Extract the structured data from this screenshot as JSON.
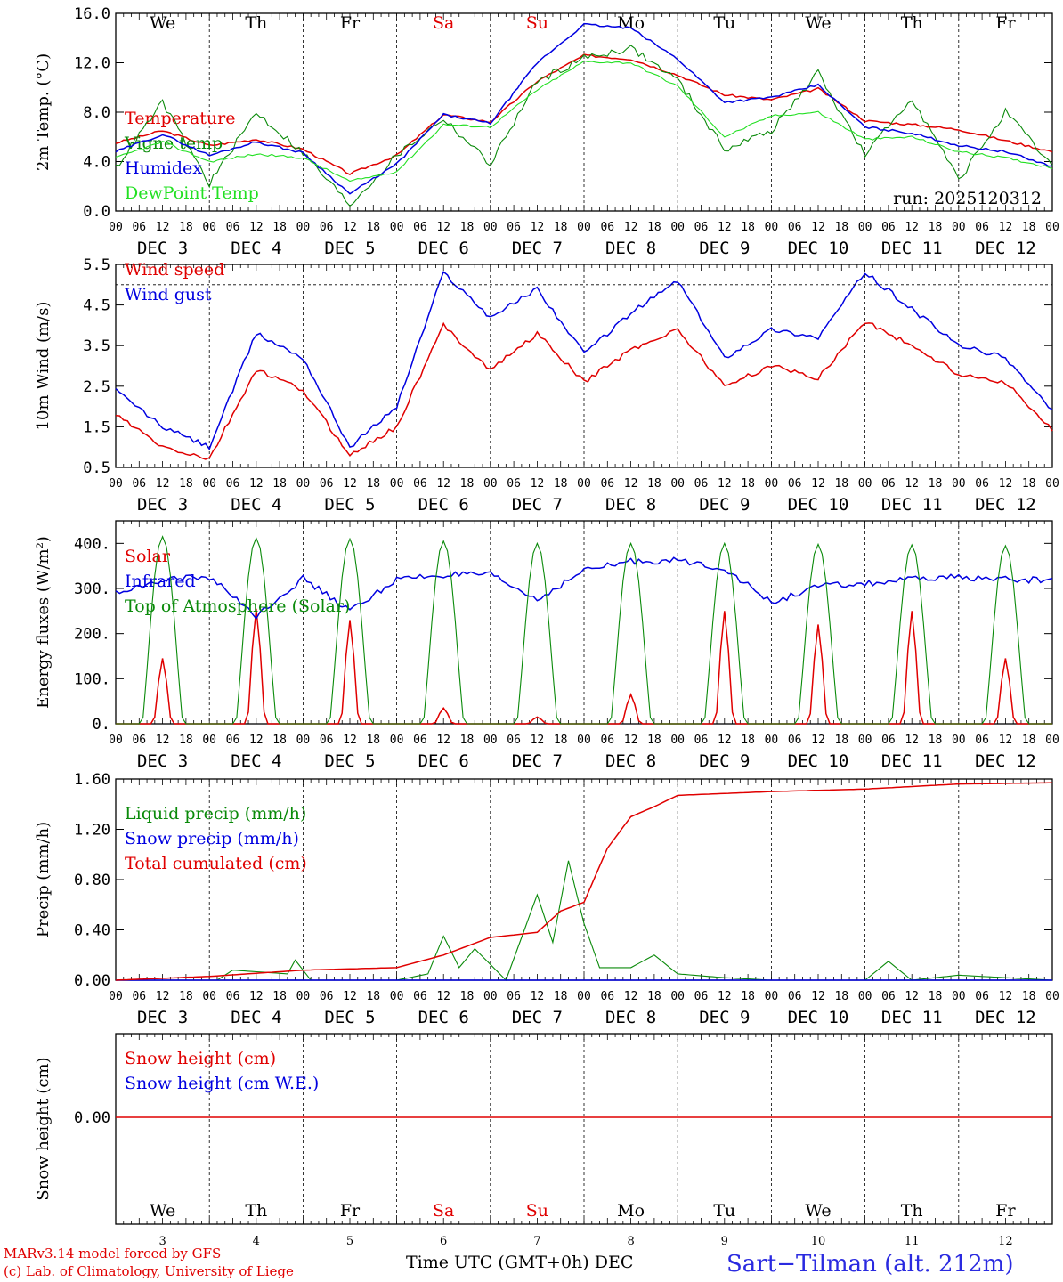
{
  "days": [
    "We",
    "Th",
    "Fr",
    "Sa",
    "Su",
    "Mo",
    "Tu",
    "We",
    "Th",
    "Fr"
  ],
  "weekend_days": [
    "Sa",
    "Su"
  ],
  "dates": [
    "DEC  3",
    "DEC  4",
    "DEC  5",
    "DEC  6",
    "DEC  7",
    "DEC  8",
    "DEC  9",
    "DEC 10",
    "DEC 11",
    "DEC 12"
  ],
  "bottom_date_numbers": [
    "3",
    "4",
    "5",
    "6",
    "7",
    "8",
    "9",
    "10",
    "11",
    "12"
  ],
  "hour_ticks": [
    "00",
    "06",
    "12",
    "18"
  ],
  "run_label": "run: 2025120312",
  "footer": {
    "model": "MARv3.14 model forced by GFS",
    "copyright": "(c) Lab. of Climatology, University of Liege",
    "time_axis": "Time UTC (GMT+0h) DEC",
    "station": "Sart−Tilman (alt. 212m)"
  },
  "colors": {
    "red": "#e00000",
    "green": "#0a8a0a",
    "blue": "#0000e0",
    "lightgreen": "#22e022"
  },
  "chart_data": [
    {
      "type": "line",
      "ylabel": "2m Temp. (°C)",
      "yticks": [
        "0.0",
        "4.0",
        "8.0",
        "12.0",
        "16.0"
      ],
      "ylim": [
        0,
        16
      ],
      "x_hours": [
        0,
        12,
        24,
        36,
        48,
        60,
        72,
        84,
        96,
        108,
        120,
        132,
        144,
        156,
        168,
        180,
        192,
        204,
        216,
        228,
        240
      ],
      "series": [
        {
          "name": "Temperature",
          "color": "red",
          "values": [
            5.5,
            6.5,
            5.3,
            5.8,
            5.0,
            3.0,
            4.5,
            7.8,
            7.2,
            10.5,
            12.6,
            12.3,
            11.0,
            9.4,
            9.0,
            9.9,
            7.3,
            7.0,
            6.6,
            5.7,
            4.8
          ]
        },
        {
          "name": "Vigne temp",
          "color": "green",
          "values": [
            3.5,
            8.8,
            2.2,
            8.0,
            4.7,
            0.5,
            4.5,
            7.5,
            3.8,
            10.5,
            12.4,
            13.2,
            10.6,
            5.0,
            6.5,
            11.2,
            4.5,
            9.2,
            2.5,
            8.0,
            3.6
          ]
        },
        {
          "name": "Humidex",
          "color": "blue",
          "values": [
            4.8,
            6.2,
            4.5,
            5.6,
            4.7,
            1.4,
            3.8,
            7.8,
            7.1,
            12.0,
            15.1,
            14.8,
            12.3,
            8.8,
            9.2,
            10.2,
            6.8,
            6.3,
            5.3,
            4.8,
            3.6
          ]
        },
        {
          "name": "DewPoint Temp",
          "color": "lightgreen",
          "values": [
            4.3,
            5.6,
            4.0,
            4.6,
            4.3,
            2.4,
            3.2,
            7.0,
            6.8,
            9.8,
            12.1,
            12.0,
            10.1,
            6.0,
            7.7,
            8.0,
            5.8,
            6.0,
            4.8,
            4.3,
            3.5
          ]
        }
      ]
    },
    {
      "type": "line",
      "ylabel": "10m Wind (m/s)",
      "yticks": [
        "0.5",
        "1.5",
        "2.5",
        "3.5",
        "4.5",
        "5.5"
      ],
      "ylim": [
        0.5,
        5.5
      ],
      "x_hours": [
        0,
        12,
        24,
        36,
        48,
        60,
        72,
        84,
        96,
        108,
        120,
        132,
        144,
        156,
        168,
        180,
        192,
        204,
        216,
        228,
        240
      ],
      "series": [
        {
          "name": "Wind speed",
          "color": "red",
          "values": [
            1.8,
            1.0,
            0.7,
            2.9,
            2.4,
            0.8,
            1.5,
            4.0,
            2.9,
            3.8,
            2.6,
            3.4,
            3.9,
            2.5,
            3.0,
            2.7,
            4.1,
            3.5,
            2.8,
            2.6,
            1.4
          ]
        },
        {
          "name": "Wind gust",
          "color": "blue",
          "values": [
            2.4,
            1.5,
            1.0,
            3.8,
            3.2,
            1.0,
            2.0,
            5.3,
            4.2,
            4.9,
            3.3,
            4.3,
            5.1,
            3.2,
            3.9,
            3.7,
            5.3,
            4.4,
            3.5,
            3.2,
            1.9
          ]
        }
      ]
    },
    {
      "type": "line",
      "ylabel": "Energy fluxes (W/m²)",
      "yticks": [
        "0.",
        "100.",
        "200.",
        "300.",
        "400."
      ],
      "ylim": [
        0,
        450
      ],
      "series": [
        {
          "name": "Solar",
          "color": "red",
          "peaks": [
            145,
            255,
            230,
            35,
            15,
            65,
            250,
            220,
            250,
            145
          ]
        },
        {
          "name": "Infrared",
          "color": "blue",
          "x_hours": [
            0,
            12,
            24,
            36,
            48,
            60,
            72,
            84,
            96,
            108,
            120,
            132,
            144,
            156,
            168,
            180,
            192,
            204,
            216,
            228,
            240
          ],
          "values": [
            290,
            320,
            325,
            240,
            322,
            250,
            320,
            330,
            330,
            275,
            340,
            360,
            362,
            345,
            268,
            305,
            310,
            320,
            325,
            320,
            318
          ]
        },
        {
          "name": "Top of Atmosphere (Solar)",
          "color": "green",
          "peaks": [
            415,
            412,
            410,
            405,
            400,
            400,
            400,
            398,
            397,
            395
          ]
        }
      ]
    },
    {
      "type": "line",
      "ylabel": "Precip (mm/h)",
      "yticks": [
        "0.00",
        "0.40",
        "0.80",
        "1.20",
        "1.60"
      ],
      "ylim": [
        0,
        1.6
      ],
      "series": [
        {
          "name": "Liquid precip (mm/h)",
          "color": "green",
          "x_hours": [
            0,
            26,
            30,
            44,
            46,
            50,
            72,
            80,
            84,
            88,
            92,
            100,
            108,
            112,
            116,
            120,
            124,
            132,
            138,
            144,
            156,
            168,
            192,
            198,
            204,
            216,
            228,
            240
          ],
          "values": [
            0,
            0,
            0.08,
            0.05,
            0.16,
            0,
            0,
            0.05,
            0.35,
            0.1,
            0.25,
            0,
            0.68,
            0.3,
            0.95,
            0.45,
            0.1,
            0.1,
            0.2,
            0.05,
            0.02,
            0,
            0,
            0.15,
            0,
            0.04,
            0.02,
            0
          ]
        },
        {
          "name": "Snow precip (mm/h)",
          "color": "blue",
          "x_hours": [
            0,
            240
          ],
          "values": [
            0,
            0
          ]
        },
        {
          "name": "Total cumulated (cm)",
          "color": "red",
          "x_hours": [
            0,
            24,
            48,
            72,
            84,
            96,
            108,
            114,
            120,
            126,
            132,
            138,
            144,
            168,
            192,
            216,
            240
          ],
          "values": [
            0,
            0.03,
            0.08,
            0.1,
            0.2,
            0.34,
            0.38,
            0.55,
            0.62,
            1.05,
            1.3,
            1.38,
            1.47,
            1.5,
            1.52,
            1.56,
            1.57
          ]
        }
      ]
    },
    {
      "type": "line",
      "ylabel": "Snow height (cm)",
      "yticks": [
        "0.00"
      ],
      "series": [
        {
          "name": "Snow height (cm)",
          "color": "red",
          "x_hours": [
            0,
            240
          ],
          "values": [
            0,
            0
          ]
        },
        {
          "name": "Snow height (cm W.E.)",
          "color": "blue",
          "x_hours": [
            0,
            240
          ],
          "values": [
            0,
            0
          ]
        }
      ]
    }
  ]
}
